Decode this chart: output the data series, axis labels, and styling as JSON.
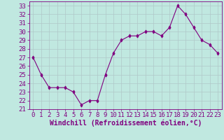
{
  "x": [
    0,
    1,
    2,
    3,
    4,
    5,
    6,
    7,
    8,
    9,
    10,
    11,
    12,
    13,
    14,
    15,
    16,
    17,
    18,
    19,
    20,
    21,
    22,
    23
  ],
  "y": [
    27.0,
    25.0,
    23.5,
    23.5,
    23.5,
    23.0,
    21.5,
    22.0,
    22.0,
    25.0,
    27.5,
    29.0,
    29.5,
    29.5,
    30.0,
    30.0,
    29.5,
    30.5,
    33.0,
    32.0,
    30.5,
    29.0,
    28.5,
    27.5
  ],
  "line_color": "#800080",
  "marker": "d",
  "marker_color": "#800080",
  "bg_color": "#c0e8e0",
  "grid_color": "#b0c8c8",
  "xlabel": "Windchill (Refroidissement éolien,°C)",
  "xlabel_color": "#800080",
  "tick_color": "#800080",
  "ylim": [
    21,
    33.5
  ],
  "yticks": [
    21,
    22,
    23,
    24,
    25,
    26,
    27,
    28,
    29,
    30,
    31,
    32,
    33
  ],
  "xlim": [
    -0.5,
    23.5
  ],
  "xticks": [
    0,
    1,
    2,
    3,
    4,
    5,
    6,
    7,
    8,
    9,
    10,
    11,
    12,
    13,
    14,
    15,
    16,
    17,
    18,
    19,
    20,
    21,
    22,
    23
  ],
  "font_size": 6.5,
  "xlabel_fontsize": 7.0,
  "marker_size": 2.5,
  "linewidth": 0.8
}
